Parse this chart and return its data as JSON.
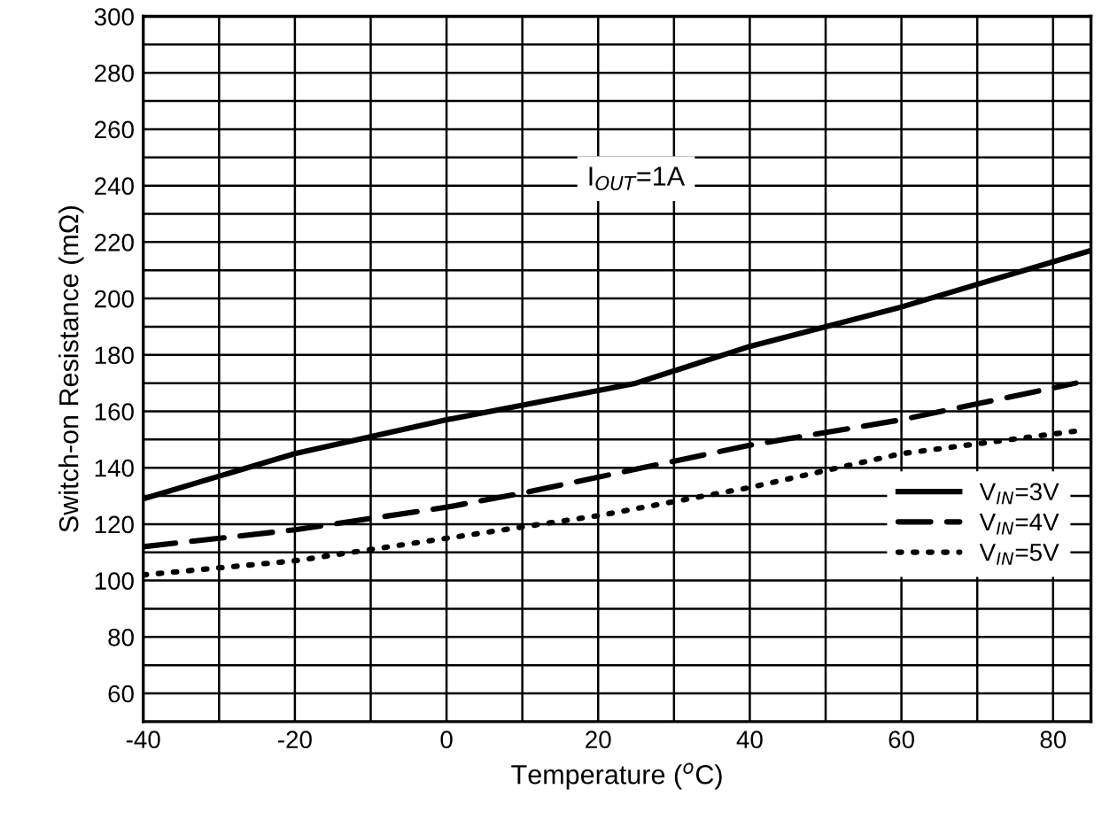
{
  "chart_data": {
    "type": "line",
    "xlabel": "Temperature ($^{o}$C)",
    "ylabel": "Switch-on Resistance (mΩ)",
    "annotations": [
      "I$_{OUT}$=1A"
    ],
    "series": [
      {
        "name": "V$_{IN}$=3V",
        "color": "#000000",
        "line_style": "solid",
        "x": [
          -40,
          -20,
          0,
          25,
          40,
          60,
          85
        ],
        "values": [
          129,
          145,
          157,
          170,
          183,
          197,
          217
        ]
      },
      {
        "name": "V$_{IN}$=4V",
        "color": "#000000",
        "line_style": "dashed",
        "x": [
          -40,
          -20,
          0,
          10,
          40,
          60,
          83
        ],
        "values": [
          112,
          118,
          126,
          131,
          148,
          157,
          170
        ]
      },
      {
        "name": "V$_{IN}$=5V",
        "color": "#000000",
        "line_style": "dotted",
        "x": [
          -40,
          -20,
          0,
          20,
          40,
          60,
          83
        ],
        "values": [
          102,
          107,
          115,
          123,
          133,
          145,
          153
        ]
      }
    ],
    "xlim": [
      -40,
      85
    ],
    "ylim": [
      50,
      300
    ],
    "xticks": [
      -40,
      {
        "value": -30,
        "label": null
      },
      -20,
      {
        "value": -10,
        "label": null
      },
      0,
      {
        "value": 10,
        "label": null
      },
      20,
      {
        "value": 30,
        "label": null
      },
      40,
      {
        "value": 50,
        "label": null
      },
      60,
      {
        "value": 70,
        "label": null
      },
      80
    ],
    "yticks": [
      60,
      {
        "value": 70,
        "label": null
      },
      80,
      {
        "value": 90,
        "label": null
      },
      100,
      {
        "value": 110,
        "label": null
      },
      120,
      {
        "value": 130,
        "label": null
      },
      140,
      {
        "value": 150,
        "label": null
      },
      160,
      {
        "value": 170,
        "label": null
      },
      180,
      {
        "value": 190,
        "label": null
      },
      200,
      {
        "value": 210,
        "label": null
      },
      220,
      {
        "value": 230,
        "label": null
      },
      240,
      {
        "value": 250,
        "label": null
      },
      260,
      {
        "value": 270,
        "label": null
      },
      280,
      {
        "value": 290,
        "label": null
      },
      300
    ],
    "grid": true,
    "legend": "right"
  }
}
